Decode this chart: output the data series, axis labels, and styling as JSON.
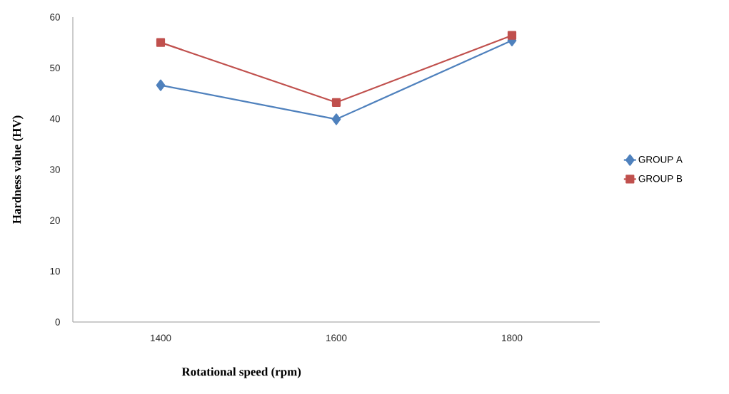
{
  "chart_data": {
    "type": "line",
    "xlabel": "Rotational speed (rpm)",
    "ylabel": "Hardness value (HV)",
    "categories": [
      "1400",
      "1600",
      "1800"
    ],
    "series": [
      {
        "name": "GROUP A",
        "color": "#4f81bd",
        "values": [
          46.6,
          39.9,
          55.4
        ],
        "marker": "diamond"
      },
      {
        "name": "GROUP B",
        "color": "#c0504d",
        "values": [
          55.0,
          43.2,
          56.4
        ],
        "marker": "square"
      }
    ],
    "ylim": [
      0,
      60
    ],
    "yticks": [
      0,
      10,
      20,
      30,
      40,
      50,
      60
    ],
    "legend": "right",
    "grid": false
  }
}
